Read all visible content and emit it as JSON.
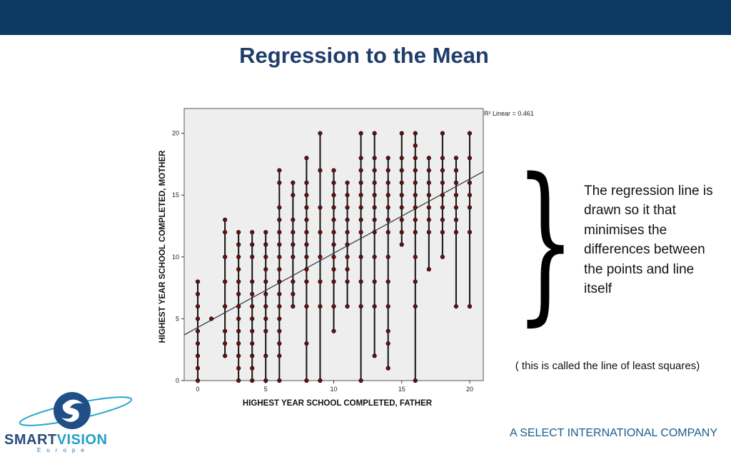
{
  "slide": {
    "title": "Regression to the Mean",
    "note": "The regression line is drawn so it that minimises the differences between the points and line itself",
    "subnote": "( this is called the line of least squares)",
    "footer": "A SELECT INTERNATIONAL COMPANY",
    "logo_text_a": "SMART",
    "logo_text_b": "VISION",
    "logo_sub": "Europe"
  },
  "colors": {
    "topbar": "#0c3a63",
    "title": "#1f3d6b",
    "footer": "#1a5d8f",
    "marker": "#7a0a0a",
    "plot_bg": "#eeeeee"
  },
  "chart_data": {
    "type": "scatter",
    "xlabel": "HIGHEST YEAR SCHOOL COMPLETED, FATHER",
    "ylabel": "HIGHEST YEAR SCHOOL COMPLETED, MOTHER",
    "xlim": [
      -1,
      21
    ],
    "ylim": [
      0,
      22
    ],
    "xticks": [
      0,
      5,
      10,
      15,
      20
    ],
    "yticks": [
      0,
      5,
      10,
      15,
      20
    ],
    "annotation": "R² Linear = 0.461",
    "regression": {
      "intercept": 4.3,
      "slope": 0.6
    },
    "columns": [
      {
        "x": 0,
        "y": [
          0,
          1,
          2,
          3,
          4,
          5,
          6,
          7,
          8
        ]
      },
      {
        "x": 1,
        "y": [
          5
        ]
      },
      {
        "x": 2,
        "y": [
          2,
          3,
          4,
          6,
          8,
          10,
          12,
          13
        ]
      },
      {
        "x": 3,
        "y": [
          0,
          1,
          2,
          3,
          4,
          5,
          6,
          7,
          8,
          9,
          10,
          11,
          12
        ]
      },
      {
        "x": 4,
        "y": [
          0,
          1,
          2,
          3,
          4,
          5,
          6,
          7,
          8,
          10,
          11,
          12
        ]
      },
      {
        "x": 5,
        "y": [
          0,
          2,
          4,
          5,
          6,
          7,
          8,
          9,
          10,
          11,
          12
        ]
      },
      {
        "x": 6,
        "y": [
          0,
          2,
          3,
          4,
          5,
          6,
          7,
          8,
          9,
          10,
          11,
          12,
          13,
          14,
          16,
          17
        ]
      },
      {
        "x": 7,
        "y": [
          6,
          7,
          8,
          10,
          11,
          12,
          13,
          15,
          16
        ]
      },
      {
        "x": 8,
        "y": [
          0,
          3,
          6,
          8,
          9,
          10,
          11,
          12,
          13,
          14,
          15,
          16,
          18
        ]
      },
      {
        "x": 9,
        "y": [
          0,
          6,
          8,
          10,
          12,
          14,
          17,
          20
        ]
      },
      {
        "x": 10,
        "y": [
          4,
          6,
          8,
          9,
          10,
          11,
          12,
          13,
          14,
          15,
          16,
          17
        ]
      },
      {
        "x": 11,
        "y": [
          6,
          8,
          9,
          10,
          11,
          12,
          13,
          14,
          15,
          16
        ]
      },
      {
        "x": 12,
        "y": [
          0,
          6,
          8,
          10,
          12,
          13,
          14,
          15,
          16,
          17,
          18,
          20
        ]
      },
      {
        "x": 13,
        "y": [
          2,
          6,
          8,
          10,
          12,
          13,
          14,
          15,
          16,
          17,
          18,
          20
        ]
      },
      {
        "x": 14,
        "y": [
          1,
          3,
          4,
          6,
          8,
          10,
          12,
          13,
          14,
          15,
          16,
          17,
          18
        ]
      },
      {
        "x": 15,
        "y": [
          11,
          12,
          13,
          14,
          15,
          16,
          17,
          18,
          20
        ]
      },
      {
        "x": 16,
        "y": [
          0,
          6,
          8,
          10,
          12,
          13,
          14,
          15,
          16,
          17,
          18,
          19,
          20
        ]
      },
      {
        "x": 17,
        "y": [
          9,
          12,
          13,
          14,
          15,
          16,
          17,
          18
        ]
      },
      {
        "x": 18,
        "y": [
          10,
          12,
          13,
          14,
          15,
          16,
          17,
          18,
          20
        ]
      },
      {
        "x": 19,
        "y": [
          6,
          12,
          13,
          14,
          15,
          16,
          17,
          18
        ]
      },
      {
        "x": 20,
        "y": [
          6,
          12,
          14,
          15,
          16,
          18,
          20
        ]
      }
    ]
  }
}
